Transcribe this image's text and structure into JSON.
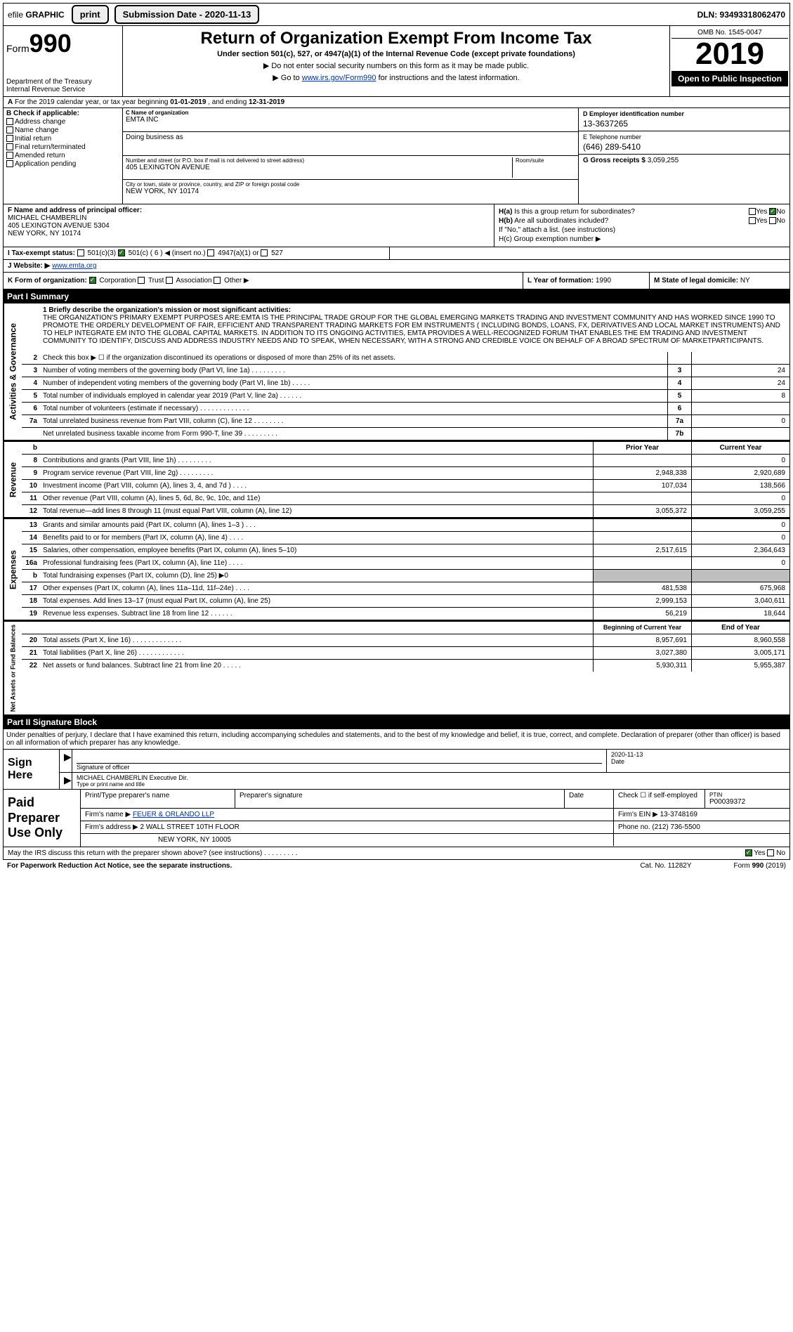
{
  "topbar": {
    "efile_prefix": "efile",
    "efile_label": "GRAPHIC",
    "print_btn": "print",
    "sub_date_btn": "Submission Date - 2020-11-13",
    "dln": "DLN: 93493318062470"
  },
  "header": {
    "form_label": "Form",
    "form_num": "990",
    "dept": "Department of the Treasury\nInternal Revenue Service",
    "title": "Return of Organization Exempt From Income Tax",
    "subtitle": "Under section 501(c), 527, or 4947(a)(1) of the Internal Revenue Code (except private foundations)",
    "note1": "▶ Do not enter social security numbers on this form as it may be made public.",
    "note2_pre": "▶ Go to ",
    "note2_link": "www.irs.gov/Form990",
    "note2_post": " for instructions and the latest information.",
    "omb": "OMB No. 1545-0047",
    "year": "2019",
    "open": "Open to Public Inspection"
  },
  "a_row": "A For the 2019 calendar year, or tax year beginning 01-01-2019  , and ending 12-31-2019",
  "col_b": {
    "hdr": "B Check if applicable:",
    "items": [
      "Address change",
      "Name change",
      "Initial return",
      "Final return/terminated",
      "Amended return",
      "Application pending"
    ]
  },
  "col_c": {
    "name_lbl": "C Name of organization",
    "name": "EMTA INC",
    "dba_lbl": "Doing business as",
    "dba": "",
    "street_lbl": "Number and street (or P.O. box if mail is not delivered to street address)",
    "room_lbl": "Room/suite",
    "street": "405 LEXINGTON AVENUE",
    "city_lbl": "City or town, state or province, country, and ZIP or foreign postal code",
    "city": "NEW YORK, NY  10174"
  },
  "col_de": {
    "d_lbl": "D Employer identification number",
    "d_val": "13-3637265",
    "e_lbl": "E Telephone number",
    "e_val": "(646) 289-5410",
    "g_lbl": "G Gross receipts $",
    "g_val": "3,059,255"
  },
  "f": {
    "lbl": "F  Name and address of principal officer:",
    "name": "MICHAEL CHAMBERLIN",
    "addr1": "405 LEXINGTON AVENUE 5304",
    "addr2": "NEW YORK, NY  10174"
  },
  "h": {
    "a_lbl": "H(a)  Is this a group return for subordinates?",
    "b_lbl": "H(b)  Are all subordinates included?",
    "b_note": "If \"No,\" attach a list. (see instructions)",
    "c_lbl": "H(c)  Group exemption number ▶"
  },
  "i": {
    "lbl": "I  Tax-exempt status:",
    "opts": {
      "a": "501(c)(3)",
      "b": "501(c) ( 6 ) ◀ (insert no.)",
      "c": "4947(a)(1) or",
      "d": "527"
    }
  },
  "j": {
    "lbl": "J  Website: ▶",
    "val": "www.emta.org"
  },
  "k": {
    "lbl": "K Form of organization:",
    "opts": [
      "Corporation",
      "Trust",
      "Association",
      "Other ▶"
    ]
  },
  "l": {
    "lbl": "L Year of formation:",
    "val": "1990"
  },
  "m": {
    "lbl": "M State of legal domicile:",
    "val": "NY"
  },
  "part1_hdr": "Part I    Summary",
  "mission_lbl": "1  Briefly describe the organization's mission or most significant activities:",
  "mission": "THE ORGANIZATION'S PRIMARY EXEMPT PURPOSES ARE:EMTA IS THE PRINCIPAL TRADE GROUP FOR THE GLOBAL EMERGING MARKETS TRADING AND INVESTMENT COMMUNITY AND HAS WORKED SINCE 1990 TO PROMOTE THE ORDERLY DEVELOPMENT OF FAIR, EFFICIENT AND TRANSPARENT TRADING MARKETS FOR EM INSTRUMENTS ( INCLUDING BONDS, LOANS, FX, DERIVATIVES AND LOCAL MARKET INSTRUMENTS) AND TO HELP INTEGRATE EM INTO THE GLOBAL CAPITAL MARKETS. IN ADDITION TO ITS ONGOING ACTIVITIES, EMTA PROVIDES A WELL-RECOGNIZED FORUM THAT ENABLES THE EM TRADING AND INVESTMENT COMMUNITY TO IDENTIFY, DISCUSS AND ADDRESS INDUSTRY NEEDS AND TO SPEAK, WHEN NECESSARY, WITH A STRONG AND CREDIBLE VOICE ON BEHALF OF A BROAD SPECTRUM OF MARKETPARTICIPANTS.",
  "gov_rows": [
    {
      "n": "2",
      "d": "Check this box ▶ ☐ if the organization discontinued its operations or disposed of more than 25% of its net assets.",
      "box": "",
      "v": ""
    },
    {
      "n": "3",
      "d": "Number of voting members of the governing body (Part VI, line 1a)  .    .    .    .    .    .    .    .    .",
      "box": "3",
      "v": "24"
    },
    {
      "n": "4",
      "d": "Number of independent voting members of the governing body (Part VI, line 1b)  .    .    .    .    .",
      "box": "4",
      "v": "24"
    },
    {
      "n": "5",
      "d": "Total number of individuals employed in calendar year 2019 (Part V, line 2a)  .    .    .    .    .    .",
      "box": "5",
      "v": "8"
    },
    {
      "n": "6",
      "d": "Total number of volunteers (estimate if necessary)  .    .    .    .    .    .    .    .    .    .    .    .    .",
      "box": "6",
      "v": ""
    },
    {
      "n": "7a",
      "d": "Total unrelated business revenue from Part VIII, column (C), line 12  .    .    .    .    .    .    .    .",
      "box": "7a",
      "v": "0"
    },
    {
      "n": "",
      "d": "Net unrelated business taxable income from Form 990-T, line 39  .    .    .    .    .    .    .    .    .",
      "box": "7b",
      "v": ""
    }
  ],
  "colhdr": {
    "prior": "Prior Year",
    "current": "Current Year"
  },
  "rev_rows": [
    {
      "n": "8",
      "d": "Contributions and grants (Part VIII, line 1h)  .    .    .    .    .    .    .    .    .",
      "p": "",
      "c": "0"
    },
    {
      "n": "9",
      "d": "Program service revenue (Part VIII, line 2g)  .    .    .    .    .    .    .    .    .",
      "p": "2,948,338",
      "c": "2,920,689"
    },
    {
      "n": "10",
      "d": "Investment income (Part VIII, column (A), lines 3, 4, and 7d )  .    .    .    .",
      "p": "107,034",
      "c": "138,566"
    },
    {
      "n": "11",
      "d": "Other revenue (Part VIII, column (A), lines 5, 6d, 8c, 9c, 10c, and 11e)",
      "p": "",
      "c": "0"
    },
    {
      "n": "12",
      "d": "Total revenue—add lines 8 through 11 (must equal Part VIII, column (A), line 12)",
      "p": "3,055,372",
      "c": "3,059,255"
    }
  ],
  "exp_rows": [
    {
      "n": "13",
      "d": "Grants and similar amounts paid (Part IX, column (A), lines 1–3 )  .    .    .",
      "p": "",
      "c": "0"
    },
    {
      "n": "14",
      "d": "Benefits paid to or for members (Part IX, column (A), line 4)  .    .    .    .",
      "p": "",
      "c": "0"
    },
    {
      "n": "15",
      "d": "Salaries, other compensation, employee benefits (Part IX, column (A), lines 5–10)",
      "p": "2,517,615",
      "c": "2,364,643"
    },
    {
      "n": "16a",
      "d": "Professional fundraising fees (Part IX, column (A), line 11e)  .    .    .    .",
      "p": "",
      "c": "0"
    },
    {
      "n": "b",
      "d": "Total fundraising expenses (Part IX, column (D), line 25) ▶0",
      "p": "shade",
      "c": "shade"
    },
    {
      "n": "17",
      "d": "Other expenses (Part IX, column (A), lines 11a–11d, 11f–24e)  .    .    .    .",
      "p": "481,538",
      "c": "675,968"
    },
    {
      "n": "18",
      "d": "Total expenses. Add lines 13–17 (must equal Part IX, column (A), line 25)",
      "p": "2,999,153",
      "c": "3,040,611"
    },
    {
      "n": "19",
      "d": "Revenue less expenses. Subtract line 18 from line 12  .    .    .    .    .    .",
      "p": "56,219",
      "c": "18,644"
    }
  ],
  "net_hdr": {
    "p": "Beginning of Current Year",
    "c": "End of Year"
  },
  "net_rows": [
    {
      "n": "20",
      "d": "Total assets (Part X, line 16)  .    .    .    .    .    .    .    .    .    .    .    .    .",
      "p": "8,957,691",
      "c": "8,960,558"
    },
    {
      "n": "21",
      "d": "Total liabilities (Part X, line 26)  .    .    .    .    .    .    .    .    .    .    .    .",
      "p": "3,027,380",
      "c": "3,005,171"
    },
    {
      "n": "22",
      "d": "Net assets or fund balances. Subtract line 21 from line 20  .    .    .    .    .",
      "p": "5,930,311",
      "c": "5,955,387"
    }
  ],
  "sidelabels": {
    "gov": "Activities & Governance",
    "rev": "Revenue",
    "exp": "Expenses",
    "net": "Net Assets or Fund Balances"
  },
  "part2_hdr": "Part II    Signature Block",
  "sig_intro": "Under penalties of perjury, I declare that I have examined this return, including accompanying schedules and statements, and to the best of my knowledge and belief, it is true, correct, and complete. Declaration of preparer (other than officer) is based on all information of which preparer has any knowledge.",
  "sign_here": "Sign Here",
  "sig": {
    "officer_lbl": "Signature of officer",
    "date_lbl": "Date",
    "date_val": "2020-11-13",
    "name": "MICHAEL CHAMBERLIN  Executive Dir.",
    "name_lbl": "Type or print name and title"
  },
  "prep_left": "Paid Preparer Use Only",
  "prep": {
    "r1": {
      "a": "Print/Type preparer's name",
      "b": "Preparer's signature",
      "c": "Date",
      "d_lbl": "Check ☐ if self-employed",
      "e_lbl": "PTIN",
      "e_val": "P00039372"
    },
    "r2": {
      "a_lbl": "Firm's name   ▶",
      "a_val": "FEUER & ORLANDO LLP",
      "b_lbl": "Firm's EIN ▶",
      "b_val": "13-3748169"
    },
    "r3": {
      "a_lbl": "Firm's address ▶",
      "a_val": "2 WALL STREET 10TH FLOOR",
      "b_lbl": "Phone no.",
      "b_val": "(212) 736-5500"
    },
    "r4": {
      "a": "NEW YORK, NY  10005"
    }
  },
  "discuss": "May the IRS discuss this return with the preparer shown above? (see instructions)  .    .    .    .    .    .    .    .    .",
  "footer": {
    "left": "For Paperwork Reduction Act Notice, see the separate instructions.",
    "mid": "Cat. No. 11282Y",
    "right": "Form 990 (2019)"
  },
  "colors": {
    "link": "#003399",
    "shade": "#bfbfbf",
    "check": "#2a7a2a"
  }
}
